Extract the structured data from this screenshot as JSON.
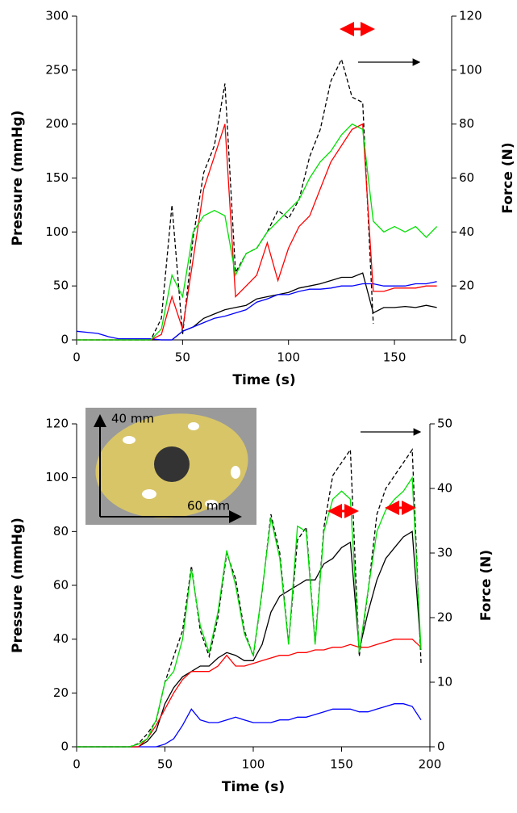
{
  "chart_data": [
    {
      "type": "line",
      "x_label": "Time (s)",
      "y_label": "Pressure (mmHg)",
      "y2_label": "Force (N)",
      "x": [
        0,
        5,
        10,
        15,
        20,
        25,
        30,
        35,
        40,
        45,
        50,
        55,
        60,
        65,
        70,
        75,
        80,
        85,
        90,
        95,
        100,
        105,
        110,
        115,
        120,
        125,
        130,
        135,
        140,
        145,
        150,
        155,
        160,
        165,
        170
      ],
      "xlim": [
        0,
        177
      ],
      "xticks": [
        0,
        50,
        100,
        150
      ],
      "ylim": [
        0,
        300
      ],
      "yticks": [
        0,
        50,
        100,
        150,
        200,
        250,
        300
      ],
      "y2lim": [
        0,
        120
      ],
      "y2ticks": [
        0,
        20,
        40,
        60,
        80,
        100,
        120
      ],
      "series": [
        {
          "color": "#00e000",
          "values": [
            0,
            0,
            0,
            0,
            0,
            0,
            0,
            0,
            10,
            60,
            40,
            100,
            115,
            120,
            115,
            60,
            80,
            85,
            100,
            110,
            120,
            130,
            150,
            165,
            175,
            190,
            200,
            195,
            110,
            100,
            105,
            100,
            105,
            95,
            105
          ]
        },
        {
          "color": "#ff0000",
          "values": [
            0,
            0,
            0,
            0,
            0,
            0,
            0,
            0,
            5,
            40,
            10,
            75,
            140,
            170,
            200,
            40,
            50,
            60,
            90,
            55,
            85,
            105,
            115,
            140,
            165,
            180,
            195,
            200,
            45,
            45,
            48,
            48,
            48,
            50,
            50
          ]
        },
        {
          "color": "#0000ff",
          "values": [
            8,
            7,
            6,
            3,
            1,
            1,
            1,
            1,
            0,
            0,
            8,
            12,
            16,
            20,
            22,
            25,
            28,
            35,
            38,
            42,
            42,
            45,
            47,
            47,
            48,
            50,
            50,
            52,
            52,
            50,
            50,
            50,
            52,
            52,
            54
          ]
        },
        {
          "color": "#000000",
          "values": [
            0,
            0,
            0,
            0,
            0,
            0,
            0,
            0,
            0,
            0,
            8,
            12,
            20,
            24,
            28,
            30,
            32,
            38,
            40,
            42,
            44,
            48,
            50,
            52,
            55,
            58,
            58,
            62,
            25,
            30,
            30,
            31,
            30,
            32,
            30
          ]
        },
        {
          "color": "#000000",
          "dashed": true,
          "axis": "y2",
          "values": [
            0,
            0,
            0,
            0,
            0,
            0,
            0,
            0,
            8,
            50,
            2,
            38,
            62,
            72,
            95,
            25,
            32,
            34,
            40,
            48,
            45,
            52,
            68,
            78,
            96,
            104,
            90,
            88,
            6,
            null,
            null,
            null,
            null,
            null,
            null
          ]
        }
      ]
    },
    {
      "type": "line",
      "x_label": "Time (s)",
      "y_label": "Pressure (mmHg)",
      "y2_label": "Force (N)",
      "annotations": [
        "40 mm",
        "60 mm"
      ],
      "x": [
        0,
        5,
        10,
        15,
        20,
        25,
        30,
        35,
        40,
        45,
        50,
        55,
        60,
        65,
        70,
        75,
        80,
        85,
        90,
        95,
        100,
        105,
        110,
        115,
        120,
        125,
        130,
        135,
        140,
        145,
        150,
        155,
        160,
        165,
        170,
        175,
        180,
        185,
        190,
        195
      ],
      "xlim": [
        0,
        200
      ],
      "xticks": [
        0,
        50,
        100,
        150,
        200
      ],
      "ylim": [
        0,
        120
      ],
      "yticks": [
        0,
        20,
        40,
        60,
        80,
        100,
        120
      ],
      "y2lim": [
        0,
        50
      ],
      "y2ticks": [
        0,
        10,
        20,
        30,
        40,
        50
      ],
      "series": [
        {
          "color": "#00e000",
          "values": [
            0,
            0,
            0,
            0,
            0,
            0,
            0,
            1,
            3,
            10,
            24,
            28,
            40,
            66,
            45,
            35,
            50,
            73,
            60,
            42,
            34,
            58,
            85,
            70,
            38,
            82,
            80,
            38,
            80,
            92,
            95,
            92,
            35,
            58,
            80,
            88,
            92,
            95,
            100,
            36
          ]
        },
        {
          "color": "#ff0000",
          "values": [
            0,
            0,
            0,
            0,
            0,
            0,
            0,
            0,
            3,
            8,
            14,
            20,
            25,
            28,
            28,
            28,
            30,
            34,
            30,
            30,
            31,
            32,
            33,
            34,
            34,
            35,
            35,
            36,
            36,
            37,
            37,
            38,
            37,
            37,
            38,
            39,
            40,
            40,
            40,
            37
          ]
        },
        {
          "color": "#0000ff",
          "values": [
            0,
            0,
            0,
            0,
            0,
            0,
            0,
            0,
            0,
            0,
            1,
            3,
            8,
            14,
            10,
            9,
            9,
            10,
            11,
            10,
            9,
            9,
            9,
            10,
            10,
            11,
            11,
            12,
            13,
            14,
            14,
            14,
            13,
            13,
            14,
            15,
            16,
            16,
            15,
            10
          ]
        },
        {
          "color": "#000000",
          "values": [
            0,
            0,
            0,
            0,
            0,
            0,
            0,
            0,
            2,
            6,
            16,
            22,
            26,
            28,
            30,
            30,
            33,
            35,
            34,
            32,
            32,
            38,
            50,
            56,
            58,
            60,
            62,
            62,
            68,
            70,
            74,
            76,
            36,
            50,
            62,
            70,
            74,
            78,
            80,
            36
          ]
        },
        {
          "color": "#000000",
          "dashed": true,
          "axis": "y2",
          "values": [
            0,
            0,
            0,
            0,
            0,
            0,
            0,
            0.5,
            2,
            4,
            10,
            14,
            18,
            28,
            18,
            14,
            20,
            30,
            26,
            18,
            14,
            24,
            36,
            30,
            16,
            32,
            34,
            16,
            34,
            42,
            44,
            46,
            14,
            24,
            36,
            40,
            42,
            44,
            46,
            13
          ]
        }
      ]
    }
  ]
}
